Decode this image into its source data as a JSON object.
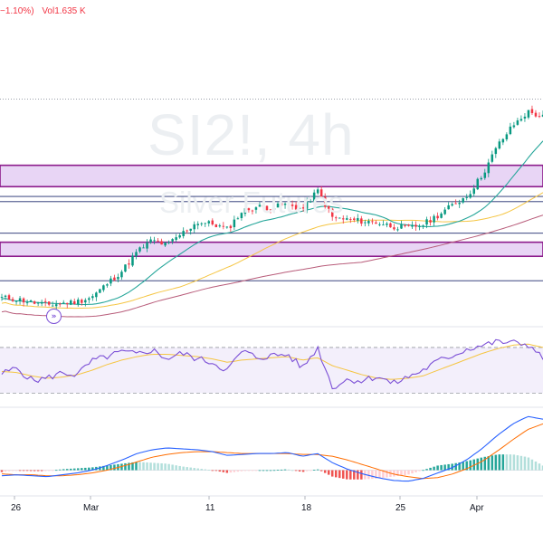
{
  "header": {
    "change_text": "−1.10%)",
    "volume_label": "Vol",
    "volume_value": "1.635 K"
  },
  "watermark": {
    "symbol": "SI2!, 4h",
    "name": "Silver Futures"
  },
  "goto_icon": "double-chevron-right-icon",
  "colors": {
    "up": "#089981",
    "down": "#f23645",
    "zone_border": "#8b1a8b",
    "zone_fill": "#e8d5f5",
    "ma_fast": "#26a69a",
    "ma_mid": "#f5c542",
    "ma_slow": "#b85c7a",
    "rsi": "#7b4fd6",
    "rsi_ma": "#f5c542",
    "macd": "#2962ff",
    "signal": "#ff6d00"
  },
  "chart_data": [
    {
      "type": "candlestick",
      "symbol": "SI2!",
      "timeframe": "4h",
      "x_labels": [
        "26",
        "Mar",
        "11",
        "18",
        "25",
        "Apr"
      ],
      "close_path": [
        22.95,
        22.92,
        22.84,
        22.78,
        22.82,
        22.86,
        22.97,
        23.28,
        23.58,
        24.03,
        24.3,
        24.18,
        24.46,
        24.72,
        24.68,
        24.55,
        24.98,
        25.08,
        25.06,
        25.14,
        25.02,
        25.46,
        24.82,
        24.78,
        24.74,
        24.71,
        24.62,
        24.58,
        24.66,
        24.88,
        25.12,
        25.35,
        25.85,
        26.52,
        26.98,
        27.3,
        27.18
      ],
      "horizontal_zones": [
        {
          "from": 26.05,
          "to": 25.55
        },
        {
          "from": 24.25,
          "to": 23.92
        }
      ],
      "horizontal_lines": [
        25.32,
        25.2,
        24.46,
        23.35
      ],
      "dotted_line": 27.6,
      "moving_averages": [
        "fast",
        "mid",
        "slow"
      ]
    },
    {
      "type": "line",
      "indicator": "RSI",
      "level_lines": [
        70,
        30
      ],
      "series": [
        {
          "values": [
            47,
            52,
            41,
            43,
            48,
            46,
            58,
            62,
            66,
            64,
            68,
            60,
            65,
            60,
            57,
            50,
            67,
            61,
            63,
            64,
            52,
            70,
            35,
            42,
            41,
            45,
            38,
            44,
            50,
            58,
            63,
            69,
            72,
            75,
            74,
            73,
            60
          ]
        },
        {
          "values": [
            49,
            48,
            45,
            43,
            44,
            46,
            50,
            55,
            59,
            62,
            64,
            64,
            63,
            62,
            60,
            57,
            59,
            60,
            61,
            62,
            59,
            61,
            54,
            50,
            46,
            43,
            42,
            43,
            45,
            50,
            55,
            60,
            65,
            69,
            72,
            73,
            70
          ]
        }
      ]
    },
    {
      "type": "bar",
      "indicator": "MACD",
      "series": [
        {
          "values": [
            -0.06,
            -0.05,
            -0.06,
            -0.07,
            -0.05,
            -0.03,
            0.0,
            0.05,
            0.11,
            0.18,
            0.22,
            0.24,
            0.23,
            0.22,
            0.2,
            0.16,
            0.17,
            0.18,
            0.18,
            0.19,
            0.15,
            0.18,
            0.08,
            0.01,
            -0.04,
            -0.08,
            -0.11,
            -0.12,
            -0.09,
            -0.03,
            0.03,
            0.12,
            0.24,
            0.38,
            0.5,
            0.58,
            0.55
          ]
        },
        {
          "values": [
            -0.04,
            -0.05,
            -0.05,
            -0.06,
            -0.06,
            -0.05,
            -0.03,
            0.0,
            0.04,
            0.09,
            0.14,
            0.17,
            0.19,
            0.2,
            0.2,
            0.19,
            0.18,
            0.18,
            0.18,
            0.18,
            0.17,
            0.17,
            0.15,
            0.11,
            0.06,
            0.01,
            -0.04,
            -0.07,
            -0.09,
            -0.08,
            -0.04,
            0.02,
            0.1,
            0.21,
            0.33,
            0.44,
            0.5
          ]
        }
      ]
    }
  ]
}
